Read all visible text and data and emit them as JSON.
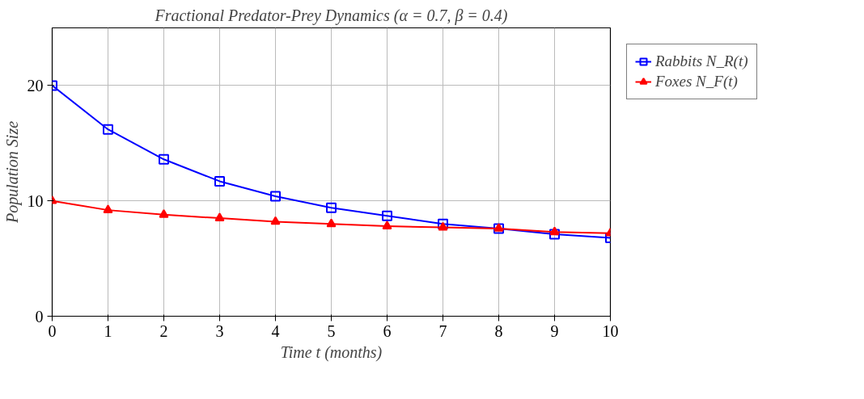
{
  "chart_data": {
    "type": "line",
    "title": "Fractional Predator-Prey Dynamics (α = 0.7, β = 0.4)",
    "xlabel": "Time t (months)",
    "ylabel": "Population Size",
    "x": [
      0,
      1,
      2,
      3,
      4,
      5,
      6,
      7,
      8,
      9,
      10
    ],
    "series": [
      {
        "name": "Rabbits N_R(t)",
        "color": "#0000ff",
        "marker": "square",
        "values": [
          20,
          16.2,
          13.6,
          11.7,
          10.4,
          9.4,
          8.7,
          8.0,
          7.6,
          7.1,
          6.8
        ]
      },
      {
        "name": "Foxes N_F(t)",
        "color": "#ff0000",
        "marker": "triangle",
        "values": [
          10,
          9.2,
          8.8,
          8.5,
          8.2,
          8.0,
          7.8,
          7.7,
          7.6,
          7.3,
          7.2
        ]
      }
    ],
    "xlim": [
      0,
      10
    ],
    "xticks": [
      0,
      1,
      2,
      3,
      4,
      5,
      6,
      7,
      8,
      9,
      10
    ],
    "ylim": [
      0,
      25
    ],
    "yticks": [
      0,
      10,
      20
    ],
    "grid": true,
    "legend": "top right",
    "line_style": "solid"
  }
}
